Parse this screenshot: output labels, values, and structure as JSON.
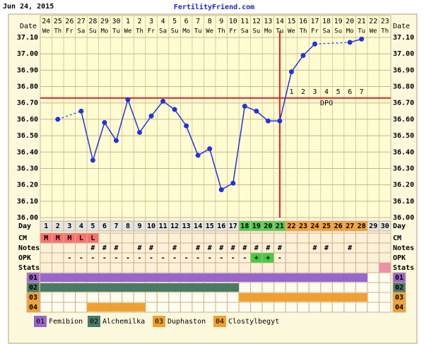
{
  "header": {
    "date": "Jun 24, 2015",
    "site": "FertilityFriend.com"
  },
  "chart_data": {
    "type": "line",
    "row_labels": {
      "date": "Date",
      "day": "Day",
      "cm": "CM",
      "notes": "Notes",
      "opk": "OPK",
      "stats": "Stats"
    },
    "dates": [
      "24",
      "25",
      "26",
      "27",
      "28",
      "29",
      "30",
      "1",
      "2",
      "3",
      "4",
      "5",
      "6",
      "7",
      "8",
      "9",
      "10",
      "11",
      "12",
      "13",
      "14",
      "15",
      "16",
      "17",
      "18",
      "19",
      "20",
      "21",
      "22",
      "23"
    ],
    "weekdays": [
      "We",
      "Th",
      "Fr",
      "Sa",
      "Su",
      "Mo",
      "Tu",
      "We",
      "Th",
      "Fr",
      "Sa",
      "Su",
      "Mo",
      "Tu",
      "We",
      "Th",
      "Fr",
      "Sa",
      "Su",
      "Mo",
      "Tu",
      "We",
      "Th",
      "Fr",
      "Sa",
      "Su",
      "Mo",
      "Tu",
      "We",
      "Th"
    ],
    "days": [
      1,
      2,
      3,
      4,
      5,
      6,
      7,
      8,
      9,
      10,
      11,
      12,
      13,
      14,
      15,
      16,
      17,
      18,
      19,
      20,
      21,
      22,
      23,
      24,
      25,
      26,
      27,
      28,
      29,
      30
    ],
    "temperatures": [
      null,
      36.6,
      null,
      36.65,
      36.35,
      36.58,
      36.47,
      36.72,
      36.52,
      36.62,
      36.71,
      36.66,
      36.56,
      36.38,
      36.42,
      36.17,
      36.21,
      36.68,
      36.65,
      36.59,
      36.59,
      36.89,
      36.99,
      37.06,
      null,
      null,
      37.07,
      37.09,
      null,
      null
    ],
    "line_color": "#2233dd",
    "ylim": [
      36.0,
      37.1
    ],
    "yticks": [
      {
        "value": 36.0,
        "label": "36.00"
      },
      {
        "value": 36.1,
        "label": "36.10"
      },
      {
        "value": 36.2,
        "label": "36.20"
      },
      {
        "value": 36.3,
        "label": "36.30"
      },
      {
        "value": 36.4,
        "label": "36.40"
      },
      {
        "value": 36.5,
        "label": "36.50"
      },
      {
        "value": 36.6,
        "label": "36.60"
      },
      {
        "value": 36.7,
        "label": "36.70"
      },
      {
        "value": 36.8,
        "label": "36.80"
      },
      {
        "value": 36.9,
        "label": "36.90"
      },
      {
        "value": 37.0,
        "label": "37.00"
      },
      {
        "value": 37.1,
        "label": "37.10"
      }
    ],
    "grid": true,
    "cover_line": 36.73,
    "ovulation_day": 21,
    "marker_color": "#dd2222",
    "dpo": {
      "label": "DPO",
      "values": [
        null,
        null,
        null,
        null,
        null,
        null,
        null,
        null,
        null,
        null,
        null,
        null,
        null,
        null,
        null,
        null,
        null,
        null,
        null,
        null,
        null,
        1,
        2,
        3,
        4,
        5,
        6,
        7,
        null,
        null
      ]
    },
    "phases": [
      {
        "color": "#55cc55",
        "days": [
          18,
          21
        ]
      },
      {
        "color": "#f5a040",
        "days": [
          22,
          28
        ]
      }
    ],
    "cm": [
      "M",
      "M",
      "M",
      "L",
      "L",
      null,
      null,
      null,
      null,
      null,
      null,
      null,
      null,
      null,
      null,
      null,
      null,
      null,
      null,
      null,
      null,
      null,
      null,
      null,
      null,
      null,
      null,
      null,
      null,
      null
    ],
    "cm_color": "#ff7070",
    "notes": [
      null,
      null,
      null,
      null,
      "#",
      "#",
      "#",
      null,
      "#",
      "#",
      null,
      "#",
      null,
      "#",
      "#",
      "#",
      "#",
      "#",
      "#",
      "#",
      "#",
      null,
      null,
      "#",
      "#",
      null,
      "#",
      null,
      null,
      null
    ],
    "opk": [
      null,
      null,
      "-",
      "-",
      "-",
      "-",
      "-",
      "-",
      "-",
      "-",
      "-",
      "-",
      "-",
      "-",
      "-",
      "-",
      "-",
      "-",
      "+",
      "+",
      "-",
      null,
      null,
      null,
      null,
      null,
      null,
      null,
      null,
      null
    ],
    "opk_positive_color": "#44cc44",
    "stats_days": [
      30
    ],
    "stats_color": "#f090a0",
    "medications": [
      {
        "code": "01",
        "name": "Femibion",
        "color": "#9966cc",
        "days": [
          1,
          28
        ]
      },
      {
        "code": "02",
        "name": "Alchemilka",
        "color": "#4a7a66",
        "days": [
          1,
          17
        ]
      },
      {
        "code": "03",
        "name": "Duphaston",
        "color": "#f0a030",
        "days": [
          18,
          28
        ]
      },
      {
        "code": "04",
        "name": "Clostylbegyt",
        "color": "#f0a030",
        "days": [
          5,
          9
        ]
      }
    ]
  }
}
